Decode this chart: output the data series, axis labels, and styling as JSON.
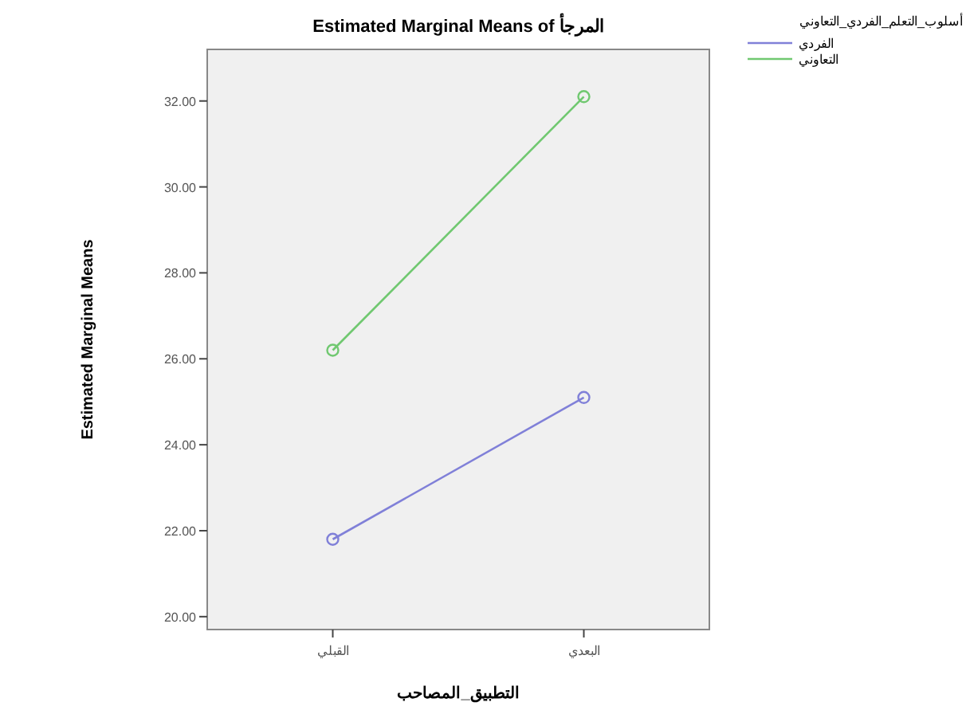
{
  "chart_data": {
    "type": "line",
    "title": "Estimated Marginal Means of المرجأ",
    "xlabel": "التطبيق_المصاحب",
    "ylabel": "Estimated Marginal Means",
    "legend_title": "أسلوب_التعلم_الفردي_التعاوني",
    "categories": [
      "القبلي",
      "البعدي"
    ],
    "series": [
      {
        "name": "الفردي",
        "color": "#8080d8",
        "values": [
          21.8,
          25.1
        ]
      },
      {
        "name": "التعاوني",
        "color": "#70c870",
        "values": [
          26.2,
          32.1
        ]
      }
    ],
    "ylim": [
      19.7,
      33.2
    ],
    "yticks": [
      {
        "value": 20,
        "label": "20.00"
      },
      {
        "value": 22,
        "label": "22.00"
      },
      {
        "value": 24,
        "label": "24.00"
      },
      {
        "value": 26,
        "label": "26.00"
      },
      {
        "value": 28,
        "label": "28.00"
      },
      {
        "value": 30,
        "label": "30.00"
      },
      {
        "value": 32,
        "label": "32.00"
      }
    ],
    "marker": "circle",
    "legend": "top right",
    "grid": false
  }
}
